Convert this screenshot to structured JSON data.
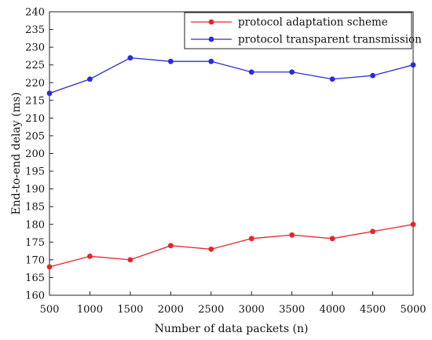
{
  "chart_data": {
    "type": "line",
    "title": "",
    "xlabel": "Number of data packets (n)",
    "ylabel": "End-to-end delay (ms)",
    "x": [
      500,
      1000,
      1500,
      2000,
      2500,
      3000,
      3500,
      4000,
      4500,
      5000
    ],
    "xlim": [
      500,
      5000
    ],
    "ylim": [
      160,
      240
    ],
    "xticks": [
      500,
      1000,
      1500,
      2000,
      2500,
      3000,
      3500,
      4000,
      4500,
      5000
    ],
    "yticks": [
      160,
      165,
      170,
      175,
      180,
      185,
      190,
      195,
      200,
      205,
      210,
      215,
      220,
      225,
      230,
      235,
      240
    ],
    "grid": false,
    "legend_position": "top-right",
    "series": [
      {
        "name": "protocol adaptation scheme",
        "color": "#e8242a",
        "values": [
          168,
          171,
          170,
          174,
          173,
          176,
          177,
          176,
          178,
          180
        ]
      },
      {
        "name": "protocol transparent transmission",
        "color": "#2b2bd9",
        "values": [
          217,
          221,
          227,
          226,
          226,
          223,
          223,
          221,
          222,
          225
        ]
      }
    ]
  }
}
